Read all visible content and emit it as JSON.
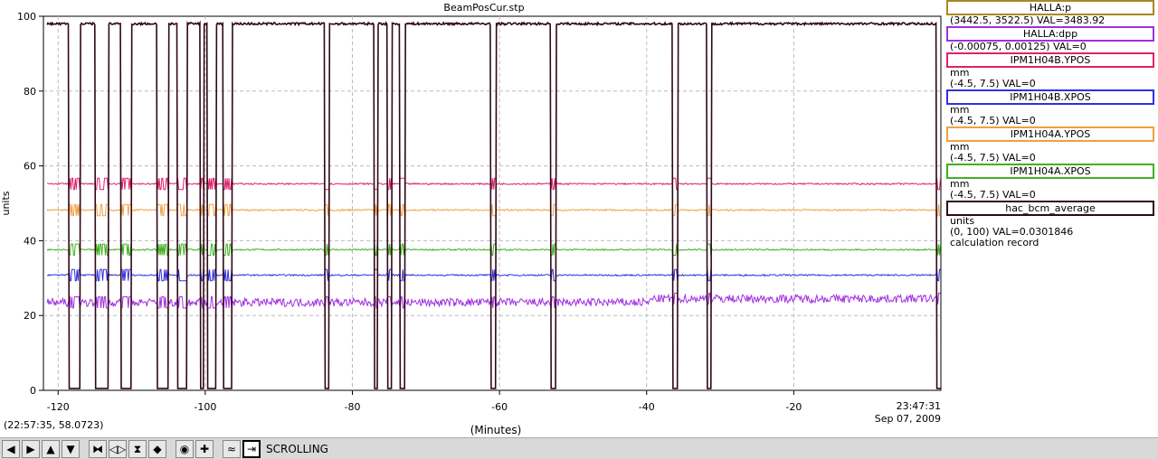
{
  "chart_data": {
    "type": "line",
    "title": "BeamPosCur.stp",
    "xlabel": "(Minutes)",
    "ylabel": "units",
    "xlim": [
      -122,
      0
    ],
    "ylim": [
      0,
      100
    ],
    "xticks": [
      -120,
      -100,
      -80,
      -60,
      -40,
      -20
    ],
    "yticks": [
      0,
      20,
      40,
      60,
      80,
      100
    ],
    "xtick_labels": [
      "-120",
      "-100",
      "-80",
      "-60",
      "-40",
      "-20"
    ],
    "ytick_labels": [
      "0",
      "20",
      "40",
      "60",
      "80",
      "100"
    ],
    "end_time": "23:47:31",
    "end_date": "Sep 07, 2009",
    "grid": true,
    "legend_placement": "right",
    "trips": [
      [
        -118.5,
        -117.0
      ],
      [
        -115.0,
        -113.2
      ],
      [
        -111.5,
        -110.0
      ],
      [
        -106.5,
        -105.0
      ],
      [
        -103.8,
        -102.5
      ],
      [
        -100.7,
        -100.2
      ],
      [
        -99.7,
        -98.5
      ],
      [
        -97.5,
        -96.3
      ],
      [
        -83.8,
        -83.2
      ],
      [
        -77.0,
        -76.5
      ],
      [
        -75.2,
        -74.6
      ],
      [
        -73.5,
        -72.8
      ],
      [
        -61.2,
        -60.5
      ],
      [
        -53.0,
        -52.3
      ],
      [
        -36.5,
        -35.8
      ],
      [
        -31.8,
        -31.2
      ],
      [
        -0.6,
        0
      ]
    ],
    "series": [
      {
        "name": "HALLA:p",
        "color": "#aa8822",
        "flat": null
      },
      {
        "name": "HALLA:dpp",
        "color": "#a030e0",
        "flat": 23.5,
        "step": {
          "x": -39.5,
          "y": 24.5
        }
      },
      {
        "name": "IPM1H04B.YPOS",
        "color": "#e0206a",
        "flat": 55.2
      },
      {
        "name": "IPM1H04B.XPOS",
        "color": "#3030e0",
        "flat": 30.8
      },
      {
        "name": "IPM1H04A.YPOS",
        "color": "#f0a040",
        "flat": 48.2
      },
      {
        "name": "IPM1H04A.XPOS",
        "color": "#40b020",
        "flat": 37.6
      },
      {
        "name": "hac_bcm_average",
        "color": "#300818",
        "flat": 98.0
      }
    ]
  },
  "legend": [
    {
      "name": "HALLA:p",
      "color": "#aa8822",
      "lines": [
        "(3442.5, 3522.5) VAL=3483.92"
      ]
    },
    {
      "name": "HALLA:dpp",
      "color": "#a030e0",
      "lines": [
        "(-0.00075, 0.00125) VAL=0"
      ]
    },
    {
      "name": "IPM1H04B.YPOS",
      "color": "#e0206a",
      "lines": [
        "mm",
        "(-4.5, 7.5) VAL=0"
      ]
    },
    {
      "name": "IPM1H04B.XPOS",
      "color": "#3030e0",
      "lines": [
        "mm",
        "(-4.5, 7.5) VAL=0"
      ]
    },
    {
      "name": "IPM1H04A.YPOS",
      "color": "#f0a040",
      "lines": [
        "mm",
        "(-4.5, 7.5) VAL=0"
      ]
    },
    {
      "name": "IPM1H04A.XPOS",
      "color": "#40b020",
      "lines": [
        "mm",
        "(-4.5, 7.5) VAL=0"
      ]
    },
    {
      "name": "hac_bcm_average",
      "color": "#300818",
      "lines": [
        "units",
        "(0, 100) VAL=0.0301846",
        "calculation record"
      ]
    }
  ],
  "status": {
    "coord": "(22:57:35, 58.0723)",
    "mode": "SCROLLING"
  },
  "toolbar": [
    {
      "icon": "arrow-left-icon",
      "glyph": "◀"
    },
    {
      "icon": "arrow-right-icon",
      "glyph": "▶"
    },
    {
      "icon": "arrow-up-icon",
      "glyph": "▲"
    },
    {
      "icon": "arrow-down-icon",
      "glyph": "▼"
    },
    {
      "icon": "zoom-in-x-icon",
      "glyph": "⧓"
    },
    {
      "icon": "zoom-out-x-icon",
      "glyph": "◁▷"
    },
    {
      "icon": "zoom-in-y-icon",
      "glyph": "⧗"
    },
    {
      "icon": "zoom-out-y-icon",
      "glyph": "◆"
    },
    {
      "icon": "record-icon",
      "glyph": "◉"
    },
    {
      "icon": "plus-icon",
      "glyph": "✚"
    },
    {
      "icon": "waveform-icon",
      "glyph": "≈"
    },
    {
      "icon": "scroll-right-icon",
      "glyph": "⇥"
    }
  ]
}
